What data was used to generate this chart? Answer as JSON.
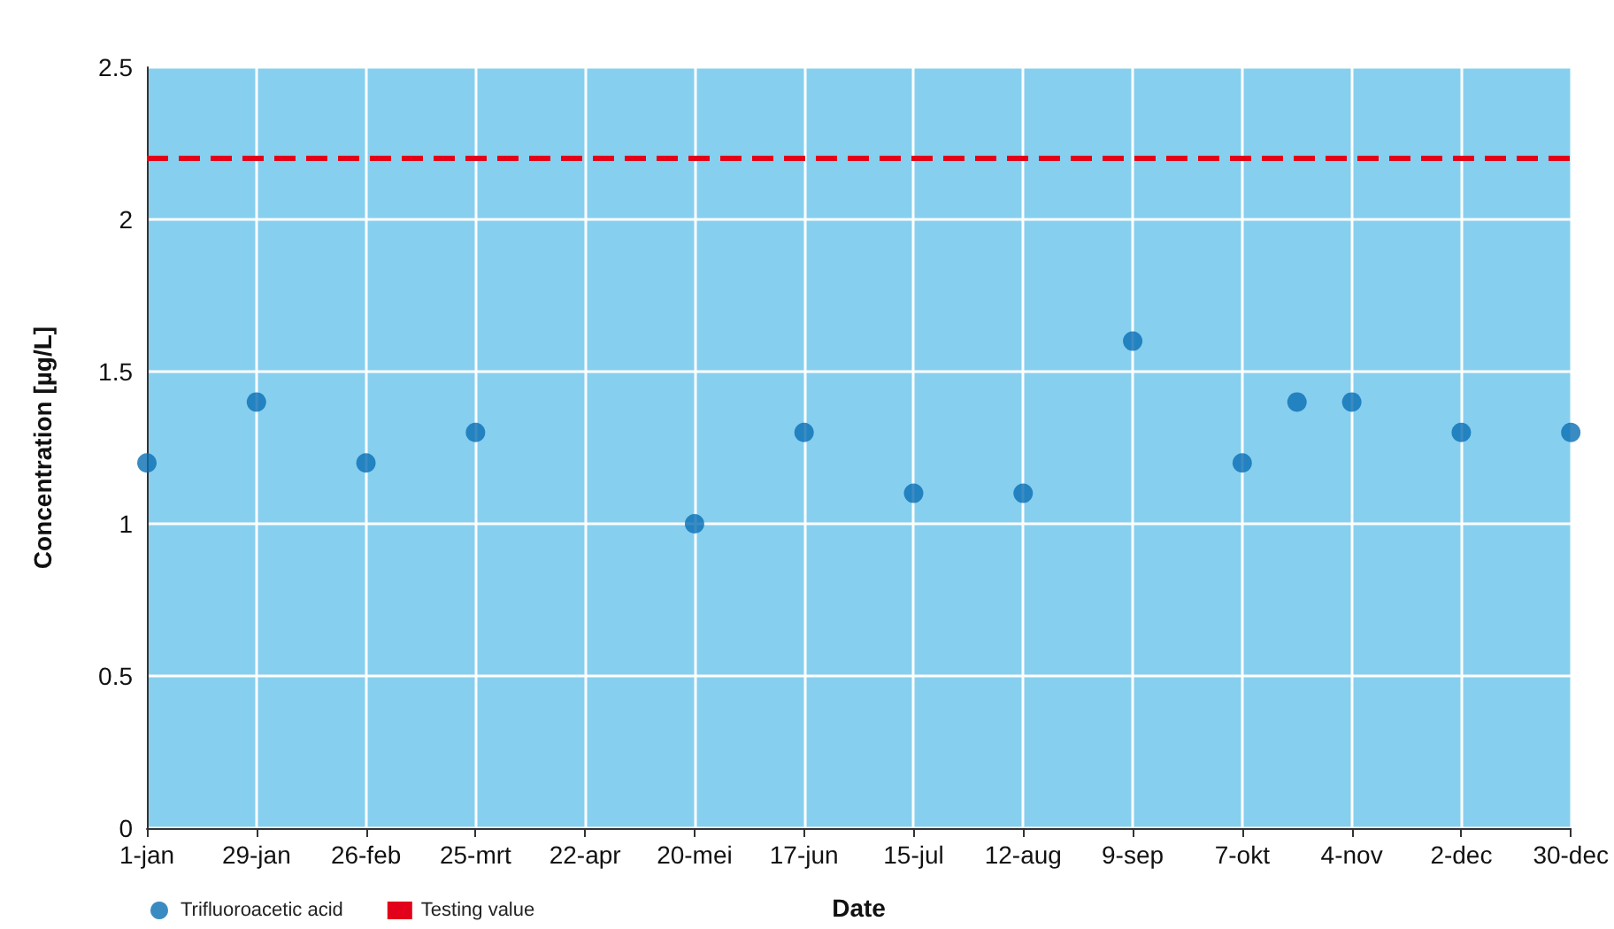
{
  "chart_data": {
    "type": "scatter",
    "xlabel": "Date",
    "ylabel": "Concentration [µg/L]",
    "x": [
      "--01-01",
      "--01-29",
      "--02-26",
      "--03-25",
      "--05-20",
      "--06-17",
      "--07-15",
      "--08-12",
      "--09-09",
      "--10-07",
      "--10-21",
      "--11-04",
      "--12-02",
      "--12-30"
    ],
    "series": [
      {
        "name": "Trifluoroacetic acid",
        "color": "#0a6eb4",
        "values": [
          1.2,
          1.4,
          1.2,
          1.3,
          1.0,
          1.3,
          1.1,
          1.1,
          1.6,
          1.2,
          1.4,
          1.4,
          1.3,
          1.3
        ]
      }
    ],
    "xlim": [
      "--01-01",
      "--12-30"
    ],
    "xticks": [
      {
        "value": "--01-01",
        "label": "1-jan"
      },
      {
        "value": "--01-29",
        "label": "29-jan"
      },
      {
        "value": "--02-26",
        "label": "26-feb"
      },
      {
        "value": "--03-25",
        "label": "25-mrt"
      },
      {
        "value": "--04-22",
        "label": "22-apr"
      },
      {
        "value": "--05-20",
        "label": "20-mei"
      },
      {
        "value": "--06-17",
        "label": "17-jun"
      },
      {
        "value": "--07-15",
        "label": "15-jul"
      },
      {
        "value": "--08-12",
        "label": "12-aug"
      },
      {
        "value": "--09-09",
        "label": "9-sep"
      },
      {
        "value": "--10-07",
        "label": "7-okt"
      },
      {
        "value": "--11-04",
        "label": "4-nov"
      },
      {
        "value": "--12-02",
        "label": "2-dec"
      },
      {
        "value": "--12-30",
        "label": "30-dec"
      }
    ],
    "ylim": [
      0,
      2.5
    ],
    "yticks": [
      0,
      0.5,
      1,
      1.5,
      2,
      2.5
    ],
    "ref_lines": [
      {
        "axis": "y",
        "value": 2.2,
        "label": "Testing value",
        "color": "#e2001a",
        "line_style": "dashed"
      }
    ],
    "grid": true,
    "legend": "bottom left",
    "marker": "circle"
  }
}
